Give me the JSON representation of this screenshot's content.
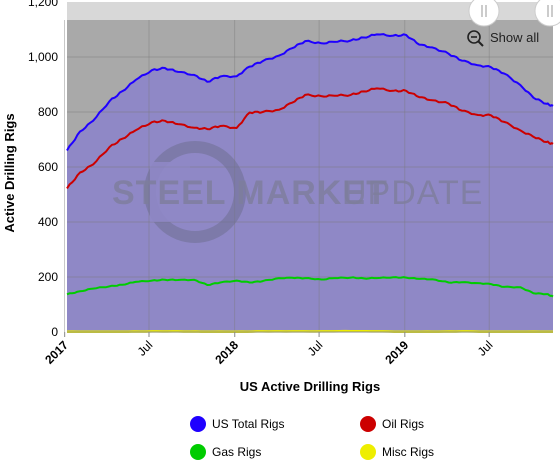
{
  "chart_data": {
    "type": "area",
    "title": "",
    "xlabel": "US Active Drilling Rigs",
    "ylabel": "Active Drilling Rigs",
    "ylim": [
      0,
      1200
    ],
    "yticks": [
      "0",
      "200",
      "400",
      "600",
      "800",
      "1,000",
      "1,200"
    ],
    "xlim": [
      "2017-01-06",
      "2019-11-15"
    ],
    "xticks": [
      {
        "date": "2017-01-01",
        "label": "2017",
        "bold": true
      },
      {
        "date": "2017-07-01",
        "label": "Jul",
        "bold": false
      },
      {
        "date": "2018-01-01",
        "label": "2018",
        "bold": true
      },
      {
        "date": "2018-07-01",
        "label": "Jul",
        "bold": false
      },
      {
        "date": "2019-01-01",
        "label": "2019",
        "bold": true
      },
      {
        "date": "2019-07-01",
        "label": "Jul",
        "bold": false
      }
    ],
    "grid": true,
    "legend_position": "bottom",
    "series": [
      {
        "name": "US Total Rigs",
        "color": "#1f00ff",
        "points": [
          [
            "2017-01-06",
            660
          ],
          [
            "2017-02-03",
            729
          ],
          [
            "2017-03-03",
            768
          ],
          [
            "2017-04-07",
            839
          ],
          [
            "2017-05-05",
            876
          ],
          [
            "2017-06-02",
            916
          ],
          [
            "2017-07-07",
            952
          ],
          [
            "2017-08-04",
            960
          ],
          [
            "2017-09-01",
            946
          ],
          [
            "2017-10-06",
            935
          ],
          [
            "2017-11-03",
            910
          ],
          [
            "2017-12-01",
            929
          ],
          [
            "2018-01-05",
            930
          ],
          [
            "2018-02-02",
            965
          ],
          [
            "2018-03-02",
            985
          ],
          [
            "2018-04-06",
            1005
          ],
          [
            "2018-05-04",
            1032
          ],
          [
            "2018-06-01",
            1058
          ],
          [
            "2018-07-06",
            1050
          ],
          [
            "2018-08-03",
            1055
          ],
          [
            "2018-09-07",
            1060
          ],
          [
            "2018-10-05",
            1071
          ],
          [
            "2018-11-02",
            1082
          ],
          [
            "2018-12-07",
            1078
          ],
          [
            "2019-01-04",
            1080
          ],
          [
            "2019-02-01",
            1045
          ],
          [
            "2019-03-01",
            1035
          ],
          [
            "2019-04-05",
            1012
          ],
          [
            "2019-05-03",
            987
          ],
          [
            "2019-06-07",
            970
          ],
          [
            "2019-07-05",
            963
          ],
          [
            "2019-08-02",
            940
          ],
          [
            "2019-09-06",
            898
          ],
          [
            "2019-10-04",
            852
          ],
          [
            "2019-11-01",
            830
          ],
          [
            "2019-11-15",
            822
          ]
        ]
      },
      {
        "name": "Oil Rigs",
        "color": "#cc0000",
        "points": [
          [
            "2017-01-06",
            522
          ],
          [
            "2017-02-03",
            580
          ],
          [
            "2017-03-03",
            609
          ],
          [
            "2017-04-07",
            672
          ],
          [
            "2017-05-05",
            703
          ],
          [
            "2017-06-02",
            733
          ],
          [
            "2017-07-07",
            763
          ],
          [
            "2017-08-04",
            768
          ],
          [
            "2017-09-01",
            756
          ],
          [
            "2017-10-06",
            743
          ],
          [
            "2017-11-03",
            738
          ],
          [
            "2017-12-01",
            749
          ],
          [
            "2018-01-05",
            742
          ],
          [
            "2018-02-02",
            798
          ],
          [
            "2018-03-02",
            800
          ],
          [
            "2018-04-06",
            808
          ],
          [
            "2018-05-04",
            834
          ],
          [
            "2018-06-01",
            862
          ],
          [
            "2018-07-06",
            858
          ],
          [
            "2018-08-03",
            859
          ],
          [
            "2018-09-07",
            862
          ],
          [
            "2018-10-05",
            875
          ],
          [
            "2018-11-02",
            886
          ],
          [
            "2018-12-07",
            877
          ],
          [
            "2019-01-04",
            877
          ],
          [
            "2019-02-01",
            854
          ],
          [
            "2019-03-01",
            843
          ],
          [
            "2019-04-05",
            831
          ],
          [
            "2019-05-03",
            805
          ],
          [
            "2019-06-07",
            789
          ],
          [
            "2019-07-05",
            788
          ],
          [
            "2019-08-02",
            764
          ],
          [
            "2019-09-06",
            733
          ],
          [
            "2019-10-04",
            710
          ],
          [
            "2019-11-01",
            691
          ],
          [
            "2019-11-15",
            684
          ]
        ]
      },
      {
        "name": "Gas Rigs",
        "color": "#00cc00",
        "points": [
          [
            "2017-01-06",
            137
          ],
          [
            "2017-02-03",
            148
          ],
          [
            "2017-03-03",
            158
          ],
          [
            "2017-04-07",
            166
          ],
          [
            "2017-05-05",
            172
          ],
          [
            "2017-06-02",
            182
          ],
          [
            "2017-07-07",
            187
          ],
          [
            "2017-08-04",
            190
          ],
          [
            "2017-09-01",
            189
          ],
          [
            "2017-10-06",
            190
          ],
          [
            "2017-11-03",
            171
          ],
          [
            "2017-12-01",
            180
          ],
          [
            "2018-01-05",
            187
          ],
          [
            "2018-02-02",
            180
          ],
          [
            "2018-03-02",
            185
          ],
          [
            "2018-04-06",
            196
          ],
          [
            "2018-05-04",
            197
          ],
          [
            "2018-06-01",
            196
          ],
          [
            "2018-07-06",
            191
          ],
          [
            "2018-08-03",
            196
          ],
          [
            "2018-09-07",
            198
          ],
          [
            "2018-10-05",
            195
          ],
          [
            "2018-11-02",
            196
          ],
          [
            "2018-12-07",
            199
          ],
          [
            "2019-01-04",
            198
          ],
          [
            "2019-02-01",
            193
          ],
          [
            "2019-03-01",
            192
          ],
          [
            "2019-04-05",
            180
          ],
          [
            "2019-05-03",
            181
          ],
          [
            "2019-06-07",
            178
          ],
          [
            "2019-07-05",
            174
          ],
          [
            "2019-08-02",
            164
          ],
          [
            "2019-09-06",
            163
          ],
          [
            "2019-10-04",
            141
          ],
          [
            "2019-11-01",
            138
          ],
          [
            "2019-11-15",
            129
          ]
        ]
      },
      {
        "name": "Misc Rigs",
        "color": "#eeee00",
        "points": [
          [
            "2017-01-06",
            1
          ],
          [
            "2017-03-03",
            1
          ],
          [
            "2017-05-05",
            1
          ],
          [
            "2017-07-07",
            2
          ],
          [
            "2017-09-01",
            2
          ],
          [
            "2017-11-03",
            1
          ],
          [
            "2018-01-05",
            1
          ],
          [
            "2018-03-02",
            2
          ],
          [
            "2018-05-04",
            2
          ],
          [
            "2018-07-06",
            2
          ],
          [
            "2018-09-07",
            3
          ],
          [
            "2018-11-02",
            2
          ],
          [
            "2019-01-04",
            1
          ],
          [
            "2019-03-01",
            1
          ],
          [
            "2019-05-03",
            2
          ],
          [
            "2019-07-05",
            1
          ],
          [
            "2019-09-06",
            1
          ],
          [
            "2019-11-15",
            1
          ]
        ]
      }
    ]
  },
  "controls": {
    "show_all_label": "Show all",
    "zoom_out_icon": "zoom-out-icon",
    "handle_icon": "scroll-handle-icon"
  },
  "watermark": {
    "part1": "STEEL MARKET",
    "part2": "UPDATE"
  },
  "colors": {
    "plot_background": "#a9a9a9",
    "area_fill": "#8f88c6",
    "scroll_track": "#d8d8d8"
  }
}
